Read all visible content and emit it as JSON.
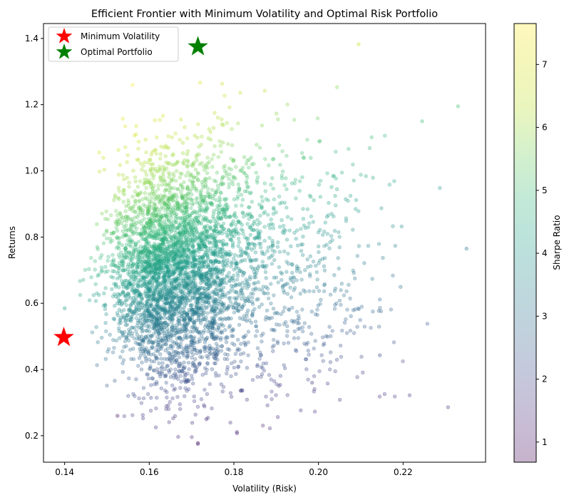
{
  "chart_data": {
    "type": "scatter",
    "title": "Efficient Frontier with Minimum Volatility and Optimal Risk Portfolio",
    "xlabel": "Volatility (Risk)",
    "ylabel": "Returns",
    "xlim": [
      0.135,
      0.2395
    ],
    "ylim": [
      0.12,
      1.445
    ],
    "xticks": [
      0.14,
      0.16,
      0.18,
      0.2,
      0.22
    ],
    "xtick_labels": [
      "0.14",
      "0.16",
      "0.18",
      "0.20",
      "0.22"
    ],
    "yticks": [
      0.2,
      0.4,
      0.6,
      0.8,
      1.0,
      1.2,
      1.4
    ],
    "ytick_labels": [
      "0.2",
      "0.4",
      "0.6",
      "0.8",
      "1.0",
      "1.2",
      "1.4"
    ],
    "colorbar": {
      "label": "Sharpe Ratio",
      "range": [
        0.68,
        7.65
      ],
      "ticks": [
        1,
        2,
        3,
        4,
        5,
        6,
        7
      ],
      "tick_labels": [
        "1",
        "2",
        "3",
        "4",
        "5",
        "6",
        "7"
      ],
      "colormap": "viridis",
      "alpha": 0.3
    },
    "random_portfolios": {
      "description": "simulated portfolios colored by Sharpe ratio",
      "volatility_center": 0.163,
      "volatility_spread": 0.0095,
      "return_center": 0.7,
      "return_spread": 0.16,
      "sample_points": [
        {
          "x": 0.1715,
          "y": 0.178,
          "s": 1.0
        },
        {
          "x": 0.1735,
          "y": 0.25,
          "s": 1.4
        },
        {
          "x": 0.235,
          "y": 0.765,
          "s": 3.2
        },
        {
          "x": 0.233,
          "y": 1.195,
          "s": 5.1
        },
        {
          "x": 0.2095,
          "y": 1.382,
          "s": 6.6
        },
        {
          "x": 0.2145,
          "y": 0.443,
          "s": 2.1
        },
        {
          "x": 0.1985,
          "y": 0.36,
          "s": 1.8
        },
        {
          "x": 0.2245,
          "y": 1.15,
          "s": 5.0
        },
        {
          "x": 0.14,
          "y": 0.585,
          "s": 4.2
        },
        {
          "x": 0.1525,
          "y": 0.26,
          "s": 1.0
        }
      ]
    },
    "legend": {
      "location": "upper left",
      "entries": [
        {
          "label": "Minimum Volatility",
          "marker": "star",
          "color": "#ff0000"
        },
        {
          "label": "Optimal Portfolio",
          "marker": "star",
          "color": "#008000"
        }
      ]
    },
    "highlighted_points": [
      {
        "name": "Minimum Volatility",
        "x": 0.1398,
        "y": 0.497,
        "color": "#ff0000"
      },
      {
        "name": "Optimal Portfolio",
        "x": 0.1715,
        "y": 1.375,
        "color": "#008000"
      }
    ]
  }
}
